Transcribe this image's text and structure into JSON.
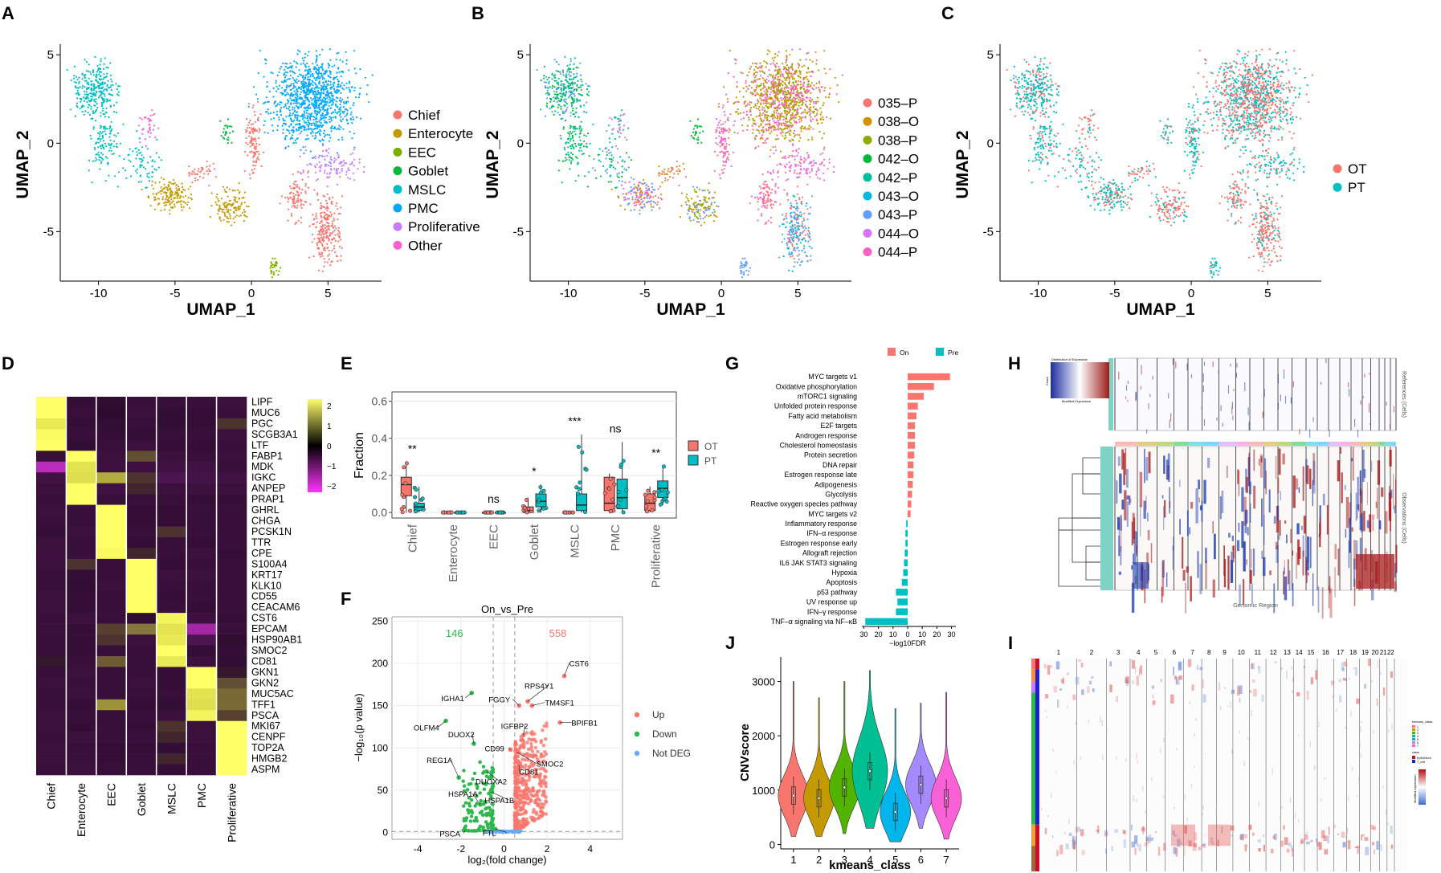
{
  "panel_labels": [
    "A",
    "B",
    "C",
    "D",
    "E",
    "F",
    "G",
    "H",
    "I",
    "J"
  ],
  "chart_data": [
    {
      "panel": "A",
      "type": "scatter",
      "xlabel": "UMAP_1",
      "ylabel": "UMAP_2",
      "xticks": [
        "-10",
        "-5",
        "0",
        "5"
      ],
      "yticks": [
        "5",
        "0",
        "-5"
      ],
      "xlim": [
        -12.5,
        8.5
      ],
      "ylim": [
        -7.8,
        5.6
      ],
      "legend_title": "",
      "legend": [
        {
          "label": "Chief",
          "color": "#F8766D"
        },
        {
          "label": "Enterocyte",
          "color": "#C49A00"
        },
        {
          "label": "EEC",
          "color": "#7CAE00"
        },
        {
          "label": "Goblet",
          "color": "#00BA38"
        },
        {
          "label": "MSLC",
          "color": "#00BFC4"
        },
        {
          "label": "PMC",
          "color": "#00A9FF"
        },
        {
          "label": "Proliferative",
          "color": "#C77CFF"
        },
        {
          "label": "Other",
          "color": "#FF61CC"
        }
      ]
    },
    {
      "panel": "B",
      "type": "scatter",
      "xlabel": "UMAP_1",
      "ylabel": "UMAP_2",
      "xticks": [
        "-10",
        "-5",
        "0",
        "5"
      ],
      "yticks": [
        "5",
        "0",
        "-5"
      ],
      "xlim": [
        -12.5,
        8.5
      ],
      "ylim": [
        -7.8,
        5.6
      ],
      "legend": [
        {
          "label": "035–P",
          "color": "#F8766D"
        },
        {
          "label": "038–O",
          "color": "#D39200"
        },
        {
          "label": "038–P",
          "color": "#93AA00"
        },
        {
          "label": "042–O",
          "color": "#00BA38"
        },
        {
          "label": "042–P",
          "color": "#00C19F"
        },
        {
          "label": "043–O",
          "color": "#00B9E3"
        },
        {
          "label": "043–P",
          "color": "#619CFF"
        },
        {
          "label": "044–O",
          "color": "#DB72FB"
        },
        {
          "label": "044–P",
          "color": "#FF61C3"
        }
      ]
    },
    {
      "panel": "C",
      "type": "scatter",
      "xlabel": "UMAP_1",
      "ylabel": "UMAP_2",
      "xticks": [
        "-10",
        "-5",
        "0",
        "5"
      ],
      "yticks": [
        "5",
        "0",
        "-5"
      ],
      "xlim": [
        -12.5,
        8.5
      ],
      "ylim": [
        -7.8,
        5.6
      ],
      "legend": [
        {
          "label": "OT",
          "color": "#F8766D"
        },
        {
          "label": "PT",
          "color": "#00BFC4"
        }
      ]
    },
    {
      "panel": "D",
      "type": "heatmap",
      "columns": [
        "Chief",
        "Enterocyte",
        "EEC",
        "Goblet",
        "MSLC",
        "PMC",
        "Proliferative"
      ],
      "rows": [
        "LIPF",
        "MUC6",
        "PGC",
        "SCGB3A1",
        "LTF",
        "FABP1",
        "MDK",
        "IGKC",
        "ANPEP",
        "PRAP1",
        "GHRL",
        "CHGA",
        "PCSK1N",
        "TTR",
        "CPE",
        "S100A4",
        "KRT17",
        "KLK10",
        "CD55",
        "CEACAM6",
        "CST6",
        "EPCAM",
        "HSP90AB1",
        "SMOC2",
        "CD81",
        "GKN1",
        "GKN2",
        "MUC5AC",
        "TFF1",
        "PSCA",
        "MKI67",
        "CENPF",
        "TOP2A",
        "HMGB2",
        "ASPM"
      ],
      "colorbar_ticks": [
        "2",
        "1",
        "0",
        "−1",
        "−2"
      ],
      "values": [
        [
          2.2,
          -0.4,
          -0.2,
          -0.5,
          -0.5,
          -0.5,
          -0.6
        ],
        [
          2.1,
          -0.5,
          -0.1,
          -0.6,
          -0.3,
          -0.4,
          -0.5
        ],
        [
          1.7,
          -0.4,
          -0.3,
          -0.5,
          -0.3,
          -0.4,
          0.3
        ],
        [
          2.0,
          -0.5,
          -0.4,
          -0.4,
          -0.5,
          -0.5,
          -0.6
        ],
        [
          2.2,
          -0.3,
          -0.5,
          -0.6,
          -0.4,
          -0.4,
          -0.5
        ],
        [
          -0.5,
          2.2,
          -0.6,
          0.5,
          -0.6,
          -0.5,
          -0.6
        ],
        [
          -1.7,
          1.6,
          -0.7,
          -0.7,
          -0.8,
          -0.8,
          -0.5
        ],
        [
          -0.8,
          1.5,
          1.2,
          0.3,
          -1.2,
          -0.9,
          -0.8
        ],
        [
          -0.6,
          2.1,
          -0.8,
          0.2,
          -0.6,
          -0.6,
          -0.6
        ],
        [
          -0.5,
          2.3,
          -0.5,
          -0.5,
          -0.5,
          -0.4,
          -0.4
        ],
        [
          -0.6,
          -0.5,
          2.2,
          -0.4,
          -0.4,
          -0.5,
          -0.5
        ],
        [
          -0.5,
          -0.5,
          2.3,
          -0.4,
          -0.4,
          -0.5,
          -0.5
        ],
        [
          -0.4,
          -0.6,
          2.2,
          -0.5,
          0.3,
          -0.5,
          -0.5
        ],
        [
          -0.6,
          -0.5,
          2.3,
          -0.4,
          -0.5,
          -0.4,
          -0.5
        ],
        [
          -0.7,
          -0.5,
          2.0,
          0.2,
          -0.5,
          -0.6,
          -0.4
        ],
        [
          -0.6,
          0.3,
          -0.5,
          2.2,
          -0.4,
          -0.5,
          -0.5
        ],
        [
          -0.5,
          -0.4,
          -0.5,
          2.3,
          -0.6,
          -0.6,
          -0.5
        ],
        [
          -0.5,
          -0.3,
          -0.6,
          2.2,
          -0.5,
          -0.5,
          -0.5
        ],
        [
          -0.6,
          -0.4,
          -0.5,
          2.1,
          -0.4,
          -0.5,
          -0.5
        ],
        [
          -0.6,
          -0.4,
          -0.5,
          2.2,
          -0.5,
          -0.4,
          -0.5
        ],
        [
          -0.5,
          -0.6,
          -0.5,
          -0.2,
          1.9,
          -0.7,
          -0.4
        ],
        [
          -0.5,
          -0.4,
          0.4,
          0.8,
          1.6,
          -1.6,
          -0.5
        ],
        [
          -0.5,
          -0.4,
          0.3,
          -0.6,
          1.7,
          -1.2,
          -0.2
        ],
        [
          -0.5,
          -0.4,
          -0.5,
          -0.5,
          2.1,
          -0.4,
          -0.4
        ],
        [
          0.1,
          -0.5,
          0.6,
          -0.5,
          1.7,
          -0.7,
          -0.3
        ],
        [
          -0.5,
          -0.6,
          -0.5,
          -0.5,
          -0.4,
          2.2,
          0.1
        ],
        [
          -0.6,
          -0.5,
          -0.5,
          -0.6,
          -0.4,
          2.1,
          0.5
        ],
        [
          -0.5,
          -0.6,
          -0.5,
          -0.5,
          -0.5,
          1.6,
          0.7
        ],
        [
          -0.5,
          -0.4,
          1.0,
          -0.4,
          -0.3,
          1.5,
          0.7
        ],
        [
          -0.6,
          -0.5,
          -0.5,
          -0.5,
          -0.6,
          1.9,
          0.4
        ],
        [
          -0.6,
          -0.4,
          -0.5,
          -0.4,
          0.3,
          -0.6,
          2.2
        ],
        [
          -0.5,
          -0.6,
          -0.5,
          -0.5,
          0.2,
          -0.6,
          2.1
        ],
        [
          -0.6,
          -0.5,
          -0.4,
          -0.4,
          -0.3,
          -0.5,
          2.2
        ],
        [
          -0.6,
          -0.5,
          -0.4,
          -0.5,
          0.2,
          -0.5,
          2.2
        ],
        [
          -0.5,
          -0.6,
          -0.5,
          -0.5,
          -0.4,
          -0.5,
          2.2
        ]
      ]
    },
    {
      "panel": "E",
      "type": "box",
      "ylabel": "Fraction",
      "yticks": [
        "0.0",
        "0.2",
        "0.4",
        "0.6"
      ],
      "ylim": [
        -0.03,
        0.65
      ],
      "categories": [
        "Chief",
        "Enterocyte",
        "EEC",
        "Goblet",
        "MSLC",
        "PMC",
        "Proliferative"
      ],
      "significance": [
        "**",
        "",
        "ns",
        "*",
        "***",
        "ns",
        "**"
      ],
      "legend": [
        {
          "label": "OT",
          "color": "#F8766D"
        },
        {
          "label": "PT",
          "color": "#00BFC4"
        }
      ],
      "series": [
        {
          "name": "OT",
          "q1": [
            0.09,
            0,
            0,
            0,
            0,
            0.01,
            0.01
          ],
          "median": [
            0.15,
            0,
            0,
            0.01,
            0,
            0.05,
            0.05
          ],
          "q3": [
            0.19,
            0,
            0,
            0.03,
            0,
            0.19,
            0.1
          ],
          "min": [
            0,
            0,
            0,
            0,
            0,
            0,
            0
          ],
          "max": [
            0.27,
            0,
            0,
            0.08,
            0,
            0.21,
            0.14
          ]
        },
        {
          "name": "PT",
          "q1": [
            0.01,
            0,
            0,
            0.03,
            0.01,
            0.02,
            0.08
          ],
          "median": [
            0.03,
            0,
            0,
            0.06,
            0.04,
            0.08,
            0.13
          ],
          "q3": [
            0.05,
            0,
            0,
            0.1,
            0.1,
            0.18,
            0.17
          ],
          "min": [
            0,
            0,
            0,
            0,
            0,
            0,
            0.04
          ],
          "max": [
            0.14,
            0,
            0,
            0.15,
            0.42,
            0.38,
            0.25
          ]
        }
      ]
    },
    {
      "panel": "F",
      "type": "scatter",
      "title": "On_vs_Pre",
      "xlabel": "log₂(fold change)",
      "ylabel": "−log₁₀(p value)",
      "xticks": [
        "-4",
        "-2",
        "0",
        "2",
        "4"
      ],
      "yticks": [
        "0",
        "50",
        "100",
        "150",
        "200",
        "250"
      ],
      "xlim": [
        -5.2,
        5.5
      ],
      "ylim": [
        -8,
        255
      ],
      "count_down": "146",
      "count_up": "558",
      "legend": [
        {
          "label": "Up",
          "color": "#F8766D"
        },
        {
          "label": "Down",
          "color": "#2DB84D"
        },
        {
          "label": "Not DEG",
          "color": "#6FA8F2"
        }
      ],
      "genes": [
        {
          "name": "CST6",
          "x": 2.8,
          "y": 185
        },
        {
          "name": "RPS4Y1",
          "x": 1.1,
          "y": 155
        },
        {
          "name": "TM4SF1",
          "x": 1.3,
          "y": 150
        },
        {
          "name": "FGGY",
          "x": 0.7,
          "y": 150
        },
        {
          "name": "BPIFB1",
          "x": 2.6,
          "y": 130
        },
        {
          "name": "IGHA1",
          "x": -1.5,
          "y": 165
        },
        {
          "name": "OLFM4",
          "x": -2.7,
          "y": 132
        },
        {
          "name": "IGFBP2",
          "x": 0.9,
          "y": 115
        },
        {
          "name": "DUOX2",
          "x": -1.4,
          "y": 105
        },
        {
          "name": "SMOC2",
          "x": 0.6,
          "y": 95
        },
        {
          "name": "CD99",
          "x": 0.3,
          "y": 98
        },
        {
          "name": "CD81",
          "x": 0.7,
          "y": 80
        },
        {
          "name": "DUOXA2",
          "x": -0.8,
          "y": 72
        },
        {
          "name": "REG1A",
          "x": -2.1,
          "y": 65
        },
        {
          "name": "HSPA1B",
          "x": -0.6,
          "y": 48
        },
        {
          "name": "HSPA1A",
          "x": -1.1,
          "y": 33
        },
        {
          "name": "PSCA",
          "x": -1.8,
          "y": 3
        },
        {
          "name": "FTL",
          "x": -0.4,
          "y": 4
        }
      ]
    },
    {
      "panel": "G",
      "type": "bar",
      "xlabel": "−log10FDR",
      "xticks": [
        "30",
        "20",
        "10",
        "0",
        "10",
        "20",
        "30"
      ],
      "legend": [
        {
          "label": "On",
          "color": "#F8766D"
        },
        {
          "label": "Pre",
          "color": "#00BFC4"
        }
      ],
      "categories": [
        "MYC targets v1",
        "Oxidative phosphorylation",
        "mTORC1 signaling",
        "Unfolded protein response",
        "Fatty acid metabolism",
        "E2F targets",
        "Androgen response",
        "Cholesterol homeostasis",
        "Protein secretion",
        "DNA repair",
        "Estrogen response late",
        "Adipogenesis",
        "Glycolysis",
        "Reactive oxygen species pathway",
        "MYC targets v2",
        "Inflammatory response",
        "IFN–α response",
        "Estrogen response early",
        "Allograft rejection",
        "IL6 JAK STAT3 signaling",
        "Hypoxia",
        "Apoptosis",
        "p53 pathway",
        "UV response up",
        "IFN–γ response",
        "TNF–α signaling via NF–κB"
      ],
      "values": [
        29,
        18,
        11,
        7,
        6,
        5,
        5,
        5,
        4.5,
        4,
        4,
        3.5,
        3,
        2.5,
        2,
        -1,
        -1.5,
        -1.5,
        -2,
        -2.5,
        -3,
        -4,
        -8,
        -7,
        -8,
        -29
      ]
    },
    {
      "panel": "H",
      "type": "heatmap",
      "top_label": "References (Cells)",
      "bottom_label": "Observations (Cells)",
      "xlabel": "Genomic Region",
      "legend_title": "Distribution of Expression",
      "legend_xlabel": "Modified Expression",
      "legend_ylabel": "Count"
    },
    {
      "panel": "I",
      "type": "heatmap",
      "chromosomes": [
        "1",
        "2",
        "3",
        "4",
        "5",
        "6",
        "7",
        "8",
        "9",
        "10",
        "11",
        "12",
        "13",
        "14",
        "15",
        "16",
        "17",
        "18",
        "19",
        "20",
        "21",
        "22"
      ],
      "legend_title": "kmeans_class",
      "legend_classes": [
        "1",
        "2",
        "3",
        "4",
        "5",
        "6",
        "7"
      ],
      "class_colors": [
        "#F8766D",
        "#C49A00",
        "#53B400",
        "#00C094",
        "#00B6EB",
        "#A58AFF",
        "#FB61D7"
      ],
      "annot_title": "class",
      "annot_labels": [
        "Epithelium",
        "T_cell"
      ],
      "scale_title": "Modified expression"
    },
    {
      "panel": "J",
      "type": "violin",
      "xlabel": "kmeans_class",
      "ylabel": "CNVscore",
      "categories": [
        "1",
        "2",
        "3",
        "4",
        "5",
        "6",
        "7"
      ],
      "yticks": [
        "0",
        "1000",
        "2000",
        "3000"
      ],
      "ylim": [
        -80,
        3450
      ],
      "colors": [
        "#F8766D",
        "#C49A00",
        "#53B400",
        "#00C094",
        "#00B6EB",
        "#A58AFF",
        "#FB61D7"
      ],
      "median": [
        900,
        850,
        1050,
        1350,
        600,
        1100,
        850
      ],
      "min": [
        150,
        150,
        200,
        300,
        50,
        300,
        100
      ],
      "max": [
        3000,
        2700,
        3000,
        3200,
        2500,
        2600,
        2800
      ]
    }
  ]
}
